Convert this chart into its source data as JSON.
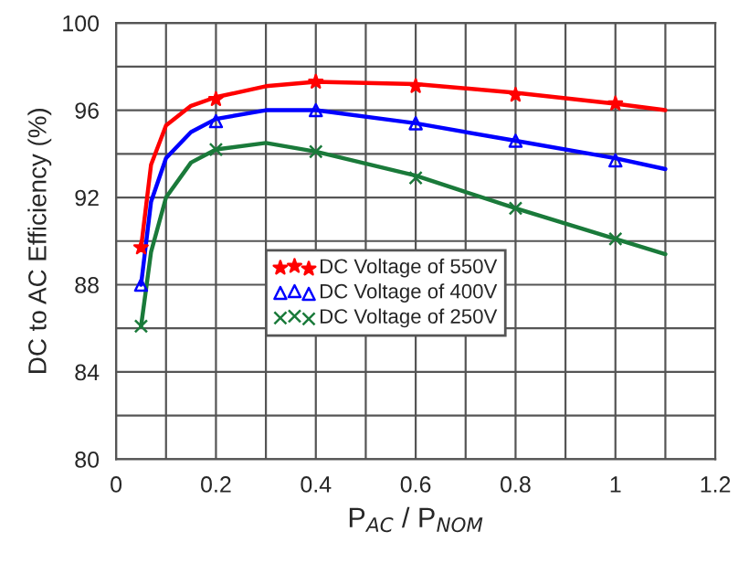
{
  "chart_data": {
    "type": "line",
    "xlabel": "P$_{AC}$ / P$_{NOM}$",
    "ylabel": "DC to AC Efficiency (%)",
    "xlim": [
      0,
      1.2
    ],
    "ylim": [
      80,
      100
    ],
    "xticks": [
      0,
      {
        "value": 0.1,
        "label": null
      },
      0.2,
      {
        "value": 0.3,
        "label": null
      },
      0.4,
      {
        "value": 0.5,
        "label": null
      },
      0.6,
      {
        "value": 0.7,
        "label": null
      },
      0.8,
      {
        "value": 0.9,
        "label": null
      },
      1,
      {
        "value": 1.1,
        "label": null
      },
      1.2
    ],
    "yticks": [
      80,
      {
        "value": 82,
        "label": null
      },
      84,
      {
        "value": 86,
        "label": null
      },
      88,
      {
        "value": 90,
        "label": null
      },
      92,
      {
        "value": 94,
        "label": null
      },
      96,
      {
        "value": 98,
        "label": null
      },
      100
    ],
    "grid": true,
    "legend": "bottom",
    "series": [
      {
        "color": "#ff0000",
        "x": [
          0.05,
          0.07,
          0.1,
          0.15,
          0.2,
          0.3,
          0.4,
          0.6,
          0.8,
          1.0,
          1.1
        ],
        "values": [
          89.7,
          93.5,
          95.3,
          96.2,
          96.6,
          97.1,
          97.3,
          97.2,
          96.8,
          96.3,
          96.0
        ]
      },
      {
        "color": "#0000ff",
        "x": [
          0.05,
          0.07,
          0.1,
          0.15,
          0.2,
          0.3,
          0.4,
          0.6,
          0.8,
          1.0,
          1.1
        ],
        "values": [
          88.0,
          91.8,
          93.8,
          95.0,
          95.6,
          96.0,
          96.0,
          95.4,
          94.6,
          93.8,
          93.3
        ]
      },
      {
        "color": "#1a7a3a",
        "x": [
          0.05,
          0.07,
          0.1,
          0.15,
          0.2,
          0.3,
          0.4,
          0.6,
          0.8,
          1.0,
          1.1
        ],
        "values": [
          86.1,
          89.5,
          92.0,
          93.6,
          94.2,
          94.5,
          94.1,
          93.0,
          91.5,
          90.1,
          89.4
        ]
      },
      {
        "type": "scatter",
        "name": "DC Voltage of 550V",
        "color": "#ff0000",
        "marker": "star",
        "x": [
          0.05,
          0.2,
          0.4,
          0.6,
          0.8,
          1.0
        ],
        "values": [
          89.7,
          96.5,
          97.3,
          97.1,
          96.7,
          96.3
        ]
      },
      {
        "type": "scatter",
        "name": "DC Voltage of 400V",
        "color": "#0000ff",
        "marker": "triangle",
        "x": [
          0.05,
          0.2,
          0.4,
          0.6,
          0.8,
          1.0
        ],
        "values": [
          88.0,
          95.5,
          96.0,
          95.4,
          94.6,
          93.7
        ]
      },
      {
        "type": "scatter",
        "name": "DC Voltage of 250V",
        "color": "#1a7a3a",
        "marker": "cross",
        "x": [
          0.05,
          0.2,
          0.4,
          0.6,
          0.8,
          1.0
        ],
        "values": [
          86.1,
          94.2,
          94.1,
          92.9,
          91.5,
          90.1
        ]
      }
    ]
  }
}
